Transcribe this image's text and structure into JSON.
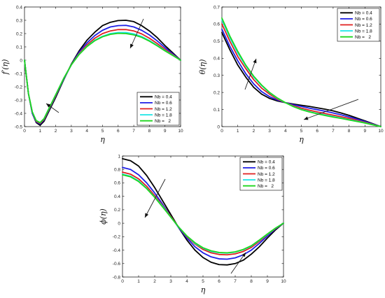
{
  "colors": {
    "series": [
      "#000000",
      "#1f1fe6",
      "#e01f1f",
      "#19e6e6",
      "#1fd61f"
    ]
  },
  "chart_data": [
    {
      "type": "line",
      "panel": "a",
      "xlabel": "η",
      "ylabel": "f′(η)",
      "xlim": [
        0,
        10
      ],
      "ylim": [
        -0.5,
        0.4
      ],
      "xticks": [
        0,
        1,
        2,
        3,
        4,
        5,
        6,
        7,
        8,
        9,
        10
      ],
      "yticks": [
        -0.5,
        -0.4,
        -0.3,
        -0.2,
        -0.1,
        0,
        0.1,
        0.2,
        0.3,
        0.4
      ],
      "grid": false,
      "legend_position": "bottom-right",
      "x": [
        0,
        0.25,
        0.5,
        0.75,
        1,
        1.25,
        1.5,
        2,
        2.5,
        3,
        3.5,
        4,
        4.5,
        5,
        5.5,
        6,
        6.5,
        7,
        7.5,
        8,
        8.5,
        9,
        9.5,
        10
      ],
      "series": [
        {
          "name": "Nb = 0.4",
          "values": [
            0.0,
            -0.25,
            -0.4,
            -0.47,
            -0.49,
            -0.46,
            -0.4,
            -0.28,
            -0.15,
            -0.03,
            0.07,
            0.15,
            0.21,
            0.26,
            0.285,
            0.298,
            0.3,
            0.29,
            0.26,
            0.22,
            0.17,
            0.11,
            0.055,
            0.0
          ]
        },
        {
          "name": "Nb = 0.6",
          "values": [
            0.0,
            -0.25,
            -0.4,
            -0.465,
            -0.48,
            -0.45,
            -0.39,
            -0.27,
            -0.145,
            -0.035,
            0.06,
            0.13,
            0.185,
            0.225,
            0.25,
            0.26,
            0.262,
            0.25,
            0.225,
            0.19,
            0.145,
            0.095,
            0.047,
            0.0
          ]
        },
        {
          "name": "Nb = 1.2",
          "values": [
            0.0,
            -0.25,
            -0.39,
            -0.46,
            -0.475,
            -0.445,
            -0.385,
            -0.265,
            -0.14,
            -0.035,
            0.05,
            0.115,
            0.165,
            0.2,
            0.22,
            0.23,
            0.23,
            0.22,
            0.198,
            0.165,
            0.125,
            0.082,
            0.04,
            0.0
          ]
        },
        {
          "name": "Nb = 1.8",
          "values": [
            0.0,
            -0.25,
            -0.39,
            -0.455,
            -0.47,
            -0.44,
            -0.38,
            -0.26,
            -0.14,
            -0.035,
            0.045,
            0.105,
            0.15,
            0.18,
            0.2,
            0.208,
            0.208,
            0.198,
            0.178,
            0.148,
            0.112,
            0.073,
            0.036,
            0.0
          ]
        },
        {
          "name": "Nb =   2",
          "values": [
            0.0,
            -0.25,
            -0.39,
            -0.455,
            -0.47,
            -0.44,
            -0.38,
            -0.26,
            -0.14,
            -0.035,
            0.043,
            0.102,
            0.146,
            0.176,
            0.194,
            0.202,
            0.2,
            0.19,
            0.172,
            0.143,
            0.108,
            0.07,
            0.035,
            0.0
          ]
        }
      ]
    },
    {
      "type": "line",
      "panel": "b",
      "xlabel": "η",
      "ylabel": "θ(η)",
      "xlim": [
        0,
        10
      ],
      "ylim": [
        0,
        0.7
      ],
      "xticks": [
        0,
        1,
        2,
        3,
        4,
        5,
        6,
        7,
        8,
        9,
        10
      ],
      "yticks": [
        0,
        0.1,
        0.2,
        0.3,
        0.4,
        0.5,
        0.6,
        0.7
      ],
      "grid": false,
      "legend_position": "top-right",
      "x": [
        0,
        0.5,
        1,
        1.5,
        2,
        2.5,
        3,
        3.5,
        4,
        4.5,
        5,
        5.5,
        6,
        6.5,
        7,
        7.5,
        8,
        8.5,
        9,
        9.5,
        10
      ],
      "series": [
        {
          "name": "Nb = 0.4",
          "values": [
            0.55,
            0.45,
            0.36,
            0.29,
            0.23,
            0.19,
            0.165,
            0.15,
            0.14,
            0.132,
            0.125,
            0.118,
            0.11,
            0.102,
            0.092,
            0.08,
            0.066,
            0.05,
            0.034,
            0.017,
            0.0
          ]
        },
        {
          "name": "Nb = 0.6",
          "values": [
            0.57,
            0.47,
            0.385,
            0.31,
            0.25,
            0.205,
            0.175,
            0.155,
            0.14,
            0.128,
            0.118,
            0.108,
            0.099,
            0.09,
            0.08,
            0.069,
            0.057,
            0.044,
            0.03,
            0.015,
            0.0
          ]
        },
        {
          "name": "Nb = 1.2",
          "values": [
            0.6,
            0.5,
            0.41,
            0.34,
            0.275,
            0.225,
            0.19,
            0.16,
            0.14,
            0.122,
            0.108,
            0.096,
            0.086,
            0.076,
            0.067,
            0.058,
            0.048,
            0.037,
            0.025,
            0.013,
            0.0
          ]
        },
        {
          "name": "Nb = 1.8",
          "values": [
            0.625,
            0.52,
            0.43,
            0.355,
            0.29,
            0.24,
            0.198,
            0.165,
            0.14,
            0.118,
            0.101,
            0.088,
            0.077,
            0.068,
            0.059,
            0.05,
            0.041,
            0.032,
            0.022,
            0.011,
            0.0
          ]
        },
        {
          "name": "Nb =   2",
          "values": [
            0.635,
            0.53,
            0.44,
            0.36,
            0.295,
            0.243,
            0.2,
            0.167,
            0.14,
            0.117,
            0.099,
            0.086,
            0.075,
            0.065,
            0.056,
            0.048,
            0.039,
            0.03,
            0.021,
            0.01,
            0.0
          ]
        }
      ]
    },
    {
      "type": "line",
      "panel": "c",
      "xlabel": "η",
      "ylabel": "ϕ(η)",
      "xlim": [
        0,
        10
      ],
      "ylim": [
        -0.8,
        1
      ],
      "xticks": [
        0,
        1,
        2,
        3,
        4,
        5,
        6,
        7,
        8,
        9,
        10
      ],
      "yticks": [
        -0.8,
        -0.6,
        -0.4,
        -0.2,
        0,
        0.2,
        0.4,
        0.6,
        0.8,
        1
      ],
      "grid": false,
      "legend_position": "top-right",
      "x": [
        0,
        0.5,
        1,
        1.5,
        2,
        2.5,
        3,
        3.5,
        4,
        4.5,
        5,
        5.5,
        6,
        6.5,
        7,
        7.5,
        8,
        8.5,
        9,
        9.5,
        10
      ],
      "series": [
        {
          "name": "Nb = 0.4",
          "values": [
            0.96,
            0.93,
            0.85,
            0.71,
            0.53,
            0.33,
            0.13,
            -0.07,
            -0.25,
            -0.4,
            -0.51,
            -0.58,
            -0.615,
            -0.62,
            -0.6,
            -0.55,
            -0.46,
            -0.35,
            -0.22,
            -0.1,
            0.0
          ]
        },
        {
          "name": "Nb = 0.6",
          "values": [
            0.83,
            0.8,
            0.72,
            0.6,
            0.45,
            0.28,
            0.1,
            -0.07,
            -0.22,
            -0.35,
            -0.44,
            -0.5,
            -0.53,
            -0.535,
            -0.515,
            -0.47,
            -0.4,
            -0.3,
            -0.19,
            -0.085,
            0.0
          ]
        },
        {
          "name": "Nb = 1.2",
          "values": [
            0.76,
            0.73,
            0.66,
            0.55,
            0.41,
            0.26,
            0.1,
            -0.06,
            -0.2,
            -0.31,
            -0.39,
            -0.44,
            -0.465,
            -0.47,
            -0.455,
            -0.42,
            -0.36,
            -0.27,
            -0.17,
            -0.08,
            0.0
          ]
        },
        {
          "name": "Nb = 1.8",
          "values": [
            0.73,
            0.7,
            0.63,
            0.52,
            0.39,
            0.25,
            0.09,
            -0.06,
            -0.19,
            -0.3,
            -0.37,
            -0.42,
            -0.44,
            -0.445,
            -0.43,
            -0.395,
            -0.34,
            -0.255,
            -0.165,
            -0.075,
            0.0
          ]
        },
        {
          "name": "Nb =   2",
          "values": [
            0.72,
            0.69,
            0.62,
            0.515,
            0.385,
            0.24,
            0.09,
            -0.06,
            -0.19,
            -0.29,
            -0.365,
            -0.41,
            -0.435,
            -0.44,
            -0.425,
            -0.39,
            -0.335,
            -0.25,
            -0.16,
            -0.073,
            0.0
          ]
        }
      ]
    }
  ]
}
